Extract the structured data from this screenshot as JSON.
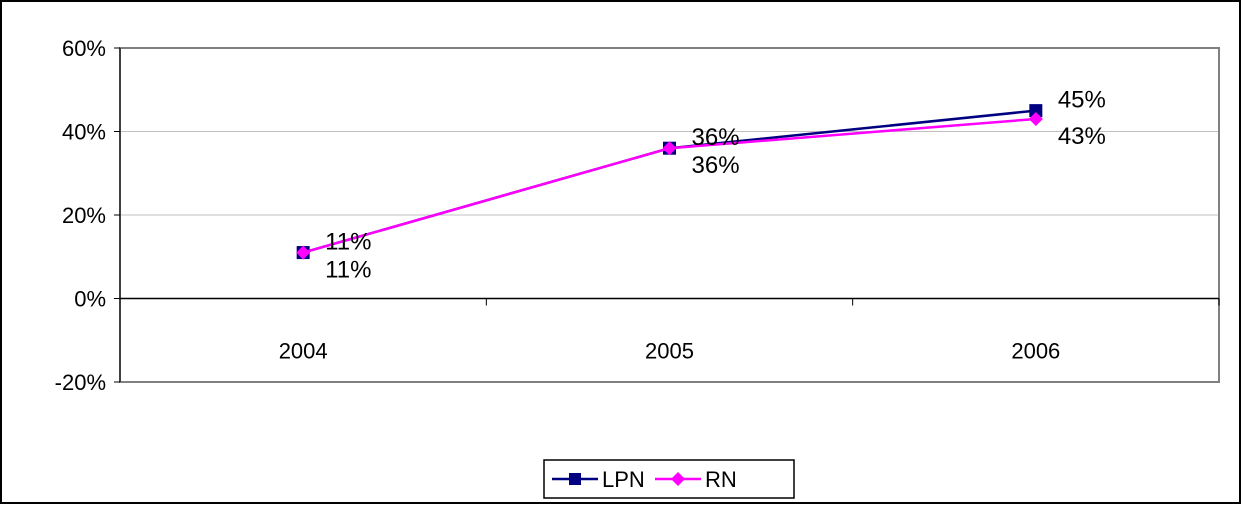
{
  "chart_data": {
    "type": "line",
    "categories": [
      "2004",
      "2005",
      "2006"
    ],
    "series": [
      {
        "name": "LPN",
        "values": [
          11,
          36,
          45
        ],
        "labels": [
          "11%",
          "36%",
          "45%"
        ],
        "color": "#000080",
        "marker": "square"
      },
      {
        "name": "RN",
        "values": [
          11,
          36,
          43
        ],
        "labels": [
          "11%",
          "36%",
          "43%"
        ],
        "color": "#FF00FF",
        "marker": "diamond"
      }
    ],
    "y_ticks": [
      {
        "value": 60,
        "label": "60%"
      },
      {
        "value": 40,
        "label": "40%"
      },
      {
        "value": 20,
        "label": "20%"
      },
      {
        "value": 0,
        "label": "0%"
      },
      {
        "value": -20,
        "label": "-20%"
      }
    ],
    "ylim": [
      -20,
      60
    ],
    "grid": true,
    "legend_position": "bottom-center",
    "plot_border_color": "#808080",
    "grid_color": "#C0C0C0"
  }
}
